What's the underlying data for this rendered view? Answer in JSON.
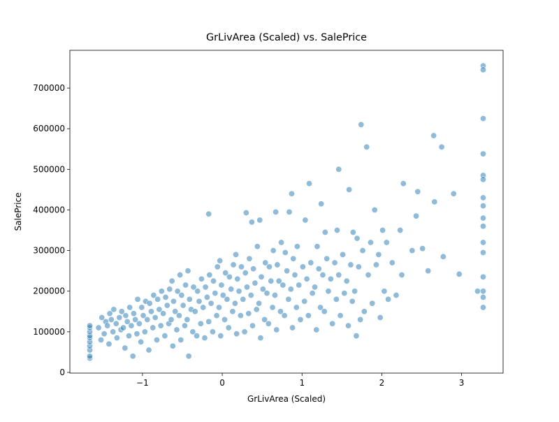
{
  "chart_data": {
    "type": "scatter",
    "title": "GrLivArea (Scaled) vs. SalePrice",
    "x_label": "GrLivArea (Scaled)",
    "y_label": "SalePrice",
    "color": "#1f77b4",
    "xlim": [
      -1.91,
      3.52
    ],
    "ylim": [
      -1700,
      793000
    ],
    "xticks": [
      {
        "value": -1,
        "label": "−1"
      },
      0,
      1,
      2,
      3
    ],
    "yticks": [
      0,
      100000,
      200000,
      300000,
      400000,
      500000,
      600000,
      700000
    ],
    "x": [
      -1.66,
      -1.66,
      -1.66,
      -1.66,
      -1.66,
      -1.66,
      -1.66,
      -1.66,
      -1.66,
      -1.66,
      -1.52,
      -1.48,
      -1.55,
      -1.46,
      -1.51,
      -1.42,
      -1.37,
      -1.44,
      -1.39,
      -1.41,
      -1.36,
      -1.32,
      -1.27,
      -1.33,
      -1.29,
      -1.26,
      -1.22,
      -1.17,
      -1.24,
      -1.19,
      -1.21,
      -1.16,
      -1.12,
      -1.07,
      -1.14,
      -1.09,
      -1.11,
      -1.06,
      -1.02,
      -0.97,
      -1.04,
      -0.99,
      -1.01,
      -0.96,
      -0.92,
      -0.87,
      -0.94,
      -0.89,
      -0.91,
      -0.86,
      -0.82,
      -0.77,
      -0.84,
      -0.79,
      -0.81,
      -0.76,
      -0.72,
      -0.67,
      -0.74,
      -0.69,
      -0.71,
      -0.66,
      -0.62,
      -0.57,
      -0.64,
      -0.59,
      -0.61,
      -0.56,
      -0.63,
      -0.52,
      -0.47,
      -0.54,
      -0.49,
      -0.51,
      -0.46,
      -0.53,
      -0.42,
      -0.37,
      -0.44,
      -0.39,
      -0.41,
      -0.36,
      -0.43,
      -0.32,
      -0.27,
      -0.34,
      -0.29,
      -0.31,
      -0.26,
      -0.22,
      -0.17,
      -0.24,
      -0.19,
      -0.21,
      -0.16,
      -0.17,
      -0.12,
      -0.07,
      -0.14,
      -0.09,
      -0.11,
      -0.06,
      -0.02,
      0.03,
      -0.04,
      0.01,
      -0.01,
      0.04,
      -0.03,
      0.08,
      0.13,
      0.06,
      0.11,
      0.09,
      0.14,
      0.18,
      0.23,
      0.16,
      0.21,
      0.19,
      0.24,
      0.17,
      0.28,
      0.33,
      0.26,
      0.31,
      0.29,
      0.34,
      0.3,
      0.38,
      0.43,
      0.36,
      0.41,
      0.39,
      0.44,
      0.37,
      0.48,
      0.53,
      0.46,
      0.51,
      0.49,
      0.54,
      0.47,
      0.58,
      0.63,
      0.56,
      0.61,
      0.59,
      0.64,
      0.68,
      0.73,
      0.66,
      0.71,
      0.69,
      0.74,
      0.67,
      0.78,
      0.83,
      0.76,
      0.81,
      0.79,
      0.84,
      0.88,
      0.93,
      0.86,
      0.91,
      0.89,
      0.94,
      0.87,
      0.98,
      1.03,
      0.96,
      1.01,
      1.04,
      1.08,
      1.13,
      1.06,
      1.11,
      1.09,
      1.18,
      1.23,
      1.16,
      1.21,
      1.19,
      1.24,
      1.28,
      1.33,
      1.26,
      1.31,
      1.29,
      1.38,
      1.43,
      1.36,
      1.41,
      1.44,
      1.46,
      1.48,
      1.53,
      1.46,
      1.51,
      1.58,
      1.63,
      1.56,
      1.61,
      1.59,
      1.64,
      1.68,
      1.73,
      1.66,
      1.71,
      1.69,
      1.74,
      1.78,
      1.83,
      1.76,
      1.81,
      1.88,
      1.93,
      1.86,
      1.91,
      1.98,
      2.03,
      1.96,
      2.01,
      2.08,
      2.13,
      2.06,
      2.18,
      2.23,
      2.27,
      2.25,
      2.38,
      2.43,
      2.45,
      2.58,
      2.51,
      2.65,
      2.66,
      2.75,
      2.77,
      2.9,
      2.97,
      3.2,
      3.27,
      3.27,
      3.27,
      3.27,
      3.27,
      3.27,
      3.27,
      3.27,
      3.27,
      3.27,
      3.27,
      3.27,
      3.27,
      3.27,
      3.27,
      3.27
    ],
    "values": [
      35000,
      40000,
      55000,
      65000,
      75000,
      85000,
      90000,
      100000,
      110000,
      115000,
      80000,
      95000,
      110000,
      125000,
      135000,
      70000,
      100000,
      115000,
      130000,
      145000,
      155000,
      85000,
      105000,
      120000,
      135000,
      150000,
      60000,
      90000,
      110000,
      125000,
      140000,
      160000,
      40000,
      95000,
      115000,
      130000,
      145000,
      180000,
      75000,
      100000,
      120000,
      140000,
      160000,
      175000,
      55000,
      110000,
      130000,
      150000,
      170000,
      190000,
      80000,
      115000,
      135000,
      155000,
      180000,
      200000,
      90000,
      120000,
      145000,
      165000,
      185000,
      205000,
      65000,
      105000,
      130000,
      150000,
      175000,
      200000,
      225000,
      80000,
      115000,
      140000,
      165000,
      190000,
      215000,
      240000,
      40000,
      100000,
      130000,
      155000,
      180000,
      210000,
      250000,
      90000,
      120000,
      150000,
      175000,
      200000,
      230000,
      85000,
      125000,
      160000,
      185000,
      210000,
      240000,
      390000,
      100000,
      140000,
      170000,
      195000,
      225000,
      260000,
      90000,
      130000,
      160000,
      190000,
      215000,
      245000,
      275000,
      110000,
      150000,
      180000,
      205000,
      235000,
      265000,
      95000,
      140000,
      170000,
      200000,
      230000,
      260000,
      290000,
      100000,
      145000,
      180000,
      210000,
      245000,
      280000,
      393000,
      115000,
      155000,
      190000,
      220000,
      255000,
      310000,
      370000,
      85000,
      130000,
      170000,
      205000,
      235000,
      270000,
      375000,
      120000,
      160000,
      195000,
      225000,
      260000,
      300000,
      105000,
      150000,
      190000,
      225000,
      265000,
      320000,
      395000,
      140000,
      180000,
      215000,
      250000,
      295000,
      395000,
      110000,
      160000,
      205000,
      240000,
      280000,
      310000,
      440000,
      130000,
      175000,
      215000,
      260000,
      375000,
      140000,
      195000,
      230000,
      270000,
      465000,
      105000,
      160000,
      210000,
      255000,
      310000,
      415000,
      150000,
      200000,
      240000,
      280000,
      345000,
      120000,
      180000,
      230000,
      270000,
      350000,
      500000,
      140000,
      195000,
      240000,
      290000,
      115000,
      175000,
      225000,
      265000,
      450000,
      345000,
      90000,
      130000,
      200000,
      260000,
      330000,
      610000,
      150000,
      240000,
      300000,
      555000,
      170000,
      265000,
      320000,
      400000,
      135000,
      200000,
      290000,
      350000,
      180000,
      270000,
      320000,
      190000,
      350000,
      465000,
      240000,
      300000,
      385000,
      445000,
      250000,
      305000,
      583000,
      420000,
      555000,
      285000,
      440000,
      242000,
      200000,
      755000,
      745000,
      625000,
      538000,
      485000,
      475000,
      430000,
      410000,
      380000,
      360000,
      320000,
      295000,
      235000,
      200000,
      185000,
      160000
    ]
  }
}
